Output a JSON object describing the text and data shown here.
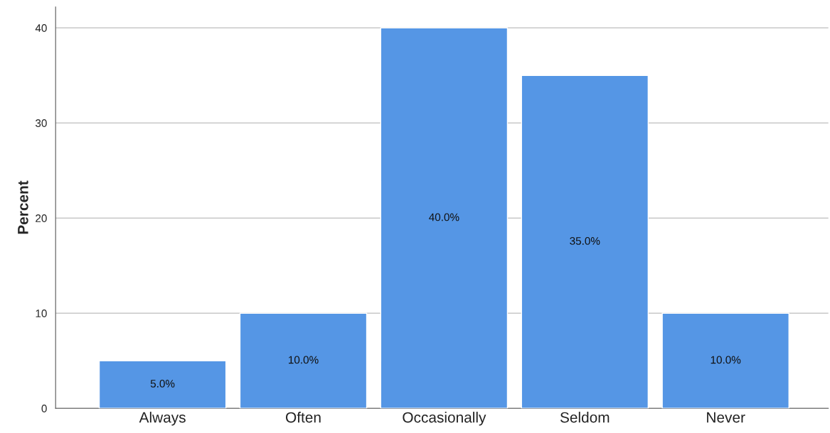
{
  "chart_data": {
    "type": "bar",
    "ylabel": "Percent",
    "categories": [
      "Always",
      "Often",
      "Occasionally",
      "Seldom",
      "Never"
    ],
    "values": [
      5,
      10,
      40,
      35,
      10
    ],
    "value_labels": [
      "5.0%",
      "10.0%",
      "40.0%",
      "35.0%",
      "10.0%"
    ],
    "color": "#5596e5",
    "ylim": [
      0,
      42.2
    ],
    "yticks": [
      0,
      10,
      20,
      30,
      40
    ],
    "grid": "y",
    "legend": false
  }
}
